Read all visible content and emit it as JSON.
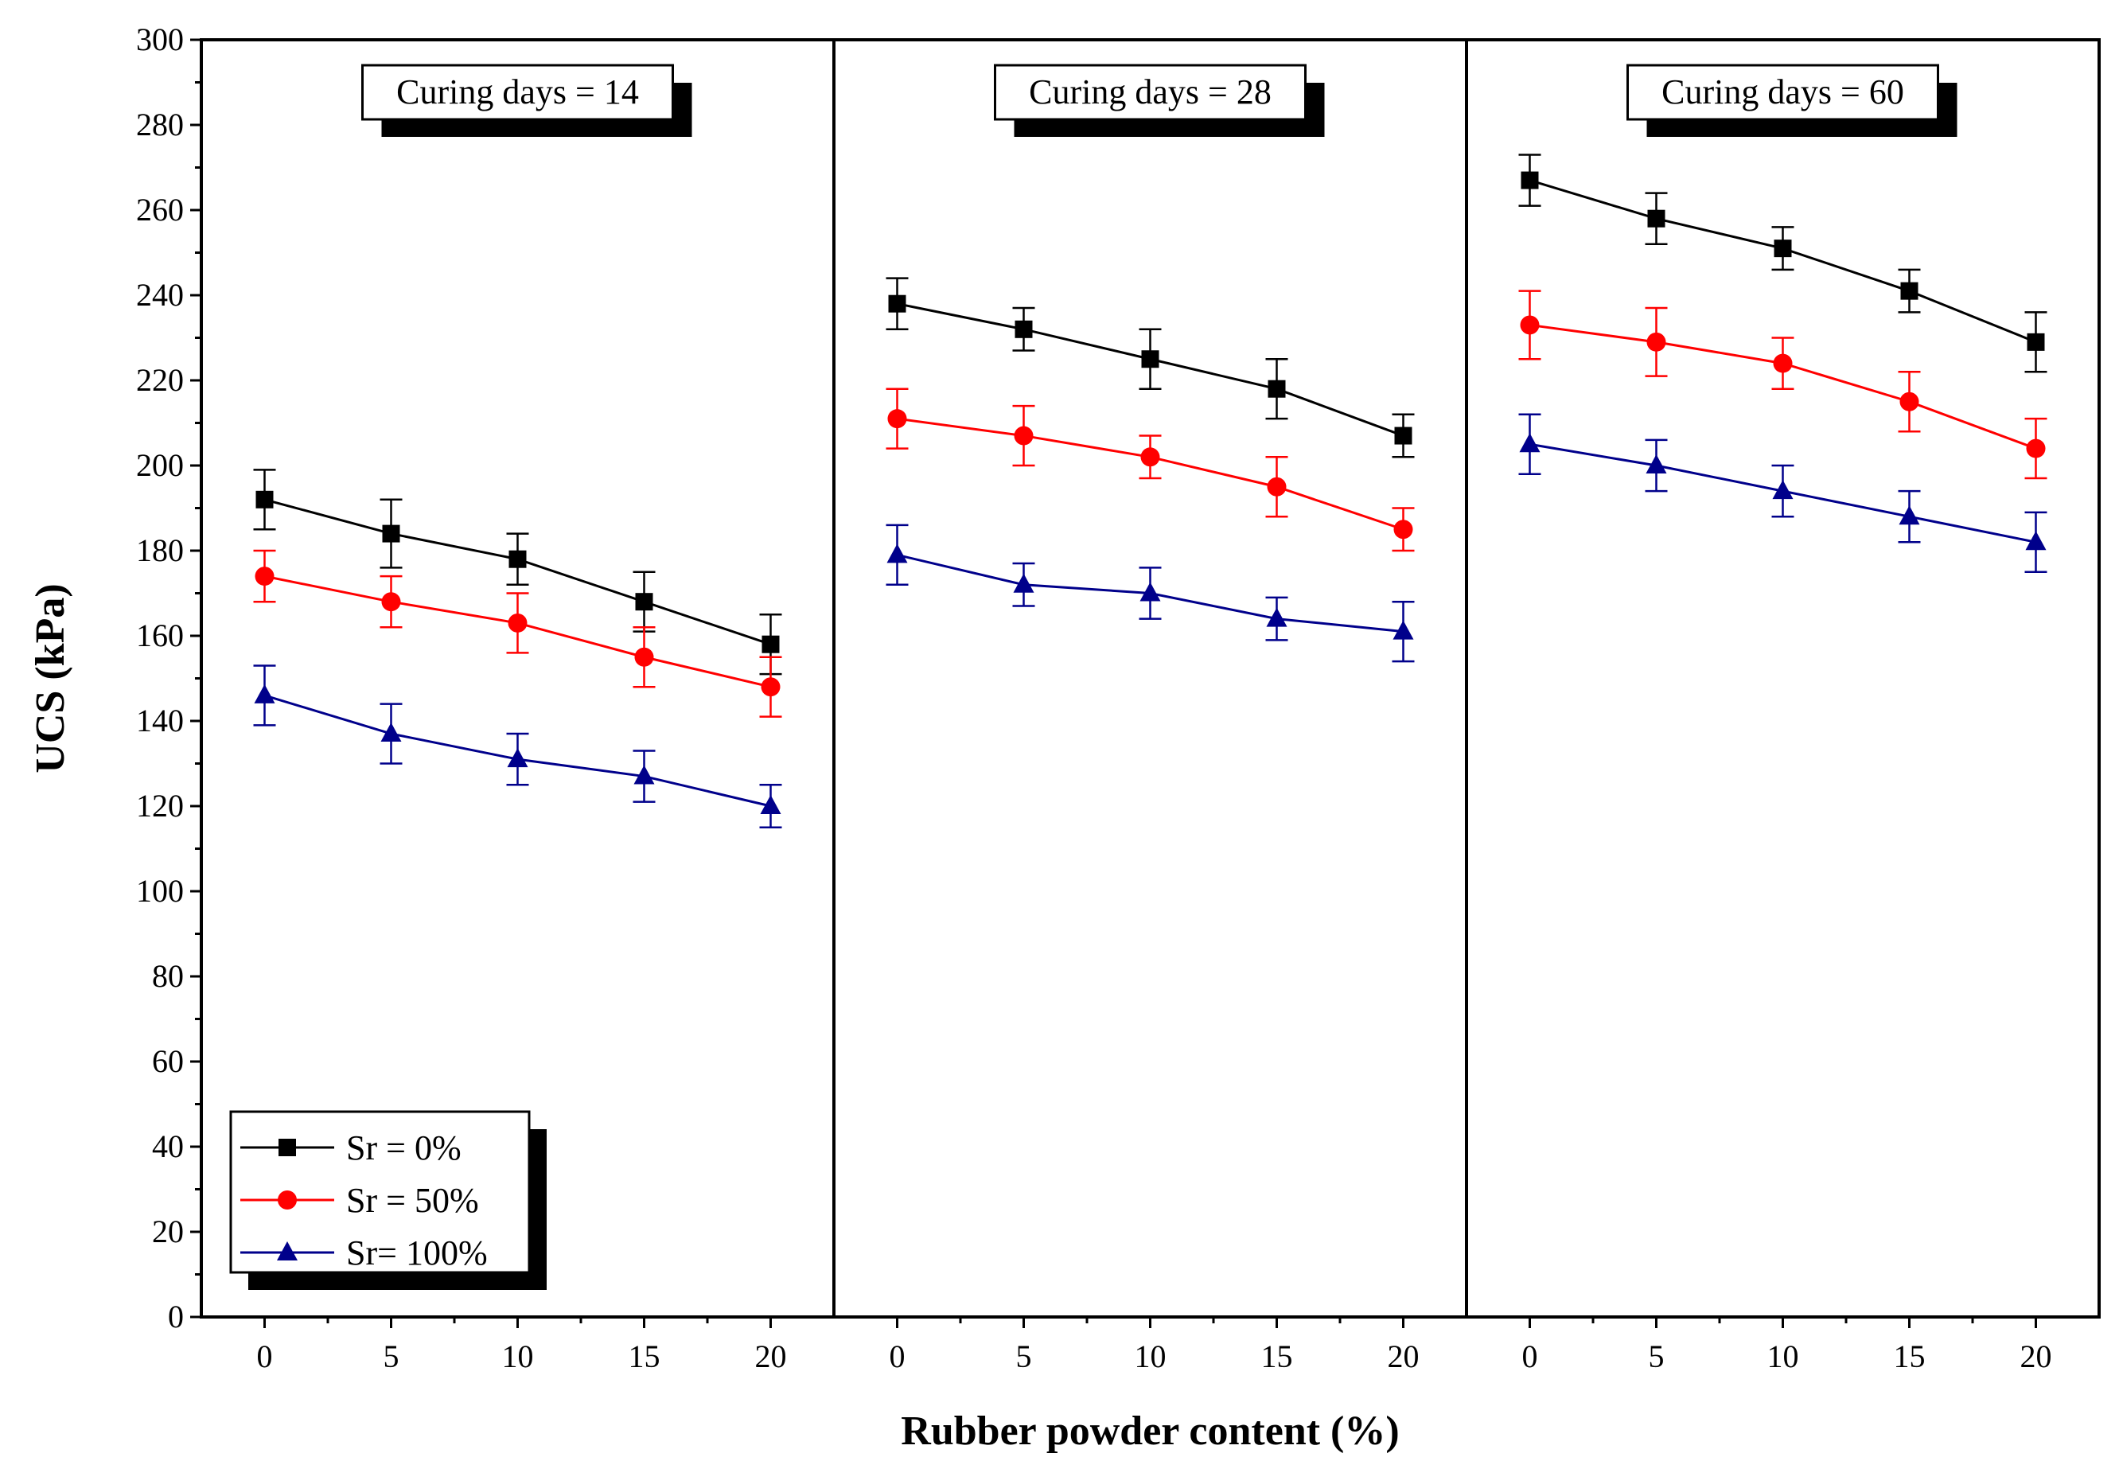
{
  "chart_data": {
    "type": "line",
    "xlabel": "Rubber powder content (%)",
    "ylabel": "UCS (kPa)",
    "ylim": [
      0,
      300
    ],
    "yticks": [
      0,
      20,
      40,
      60,
      80,
      100,
      120,
      140,
      160,
      180,
      200,
      220,
      240,
      260,
      280,
      300
    ],
    "xlim": [
      -2.5,
      22.5
    ],
    "x": [
      0,
      5,
      10,
      15,
      20
    ],
    "legend": [
      {
        "name": "Sr = 0%",
        "color": "#000000",
        "marker": "square"
      },
      {
        "name": "Sr = 50%",
        "color": "#ff0000",
        "marker": "circle"
      },
      {
        "name": "Sr= 100%",
        "color": "#00008b",
        "marker": "triangle"
      }
    ],
    "legend_location": "bottom-left of first panel",
    "panels": [
      {
        "title": "Curing days = 14",
        "series": [
          {
            "name": "Sr = 0%",
            "values": [
              192,
              184,
              178,
              168,
              158
            ],
            "errors": [
              7,
              8,
              6,
              7,
              7
            ]
          },
          {
            "name": "Sr = 50%",
            "values": [
              174,
              168,
              163,
              155,
              148
            ],
            "errors": [
              6,
              6,
              7,
              7,
              7
            ]
          },
          {
            "name": "Sr= 100%",
            "values": [
              146,
              137,
              131,
              127,
              120
            ],
            "errors": [
              7,
              7,
              6,
              6,
              5
            ]
          }
        ]
      },
      {
        "title": "Curing days = 28",
        "series": [
          {
            "name": "Sr = 0%",
            "values": [
              238,
              232,
              225,
              218,
              207
            ],
            "errors": [
              6,
              5,
              7,
              7,
              5
            ]
          },
          {
            "name": "Sr = 50%",
            "values": [
              211,
              207,
              202,
              195,
              185
            ],
            "errors": [
              7,
              7,
              5,
              7,
              5
            ]
          },
          {
            "name": "Sr= 100%",
            "values": [
              179,
              172,
              170,
              164,
              161
            ],
            "errors": [
              7,
              5,
              6,
              5,
              7
            ]
          }
        ]
      },
      {
        "title": "Curing days = 60",
        "series": [
          {
            "name": "Sr = 0%",
            "values": [
              267,
              258,
              251,
              241,
              229
            ],
            "errors": [
              6,
              6,
              5,
              5,
              7
            ]
          },
          {
            "name": "Sr = 50%",
            "values": [
              233,
              229,
              224,
              215,
              204
            ],
            "errors": [
              8,
              8,
              6,
              7,
              7
            ]
          },
          {
            "name": "Sr= 100%",
            "values": [
              205,
              200,
              194,
              188,
              182
            ],
            "errors": [
              7,
              6,
              6,
              6,
              7
            ]
          }
        ]
      }
    ]
  }
}
